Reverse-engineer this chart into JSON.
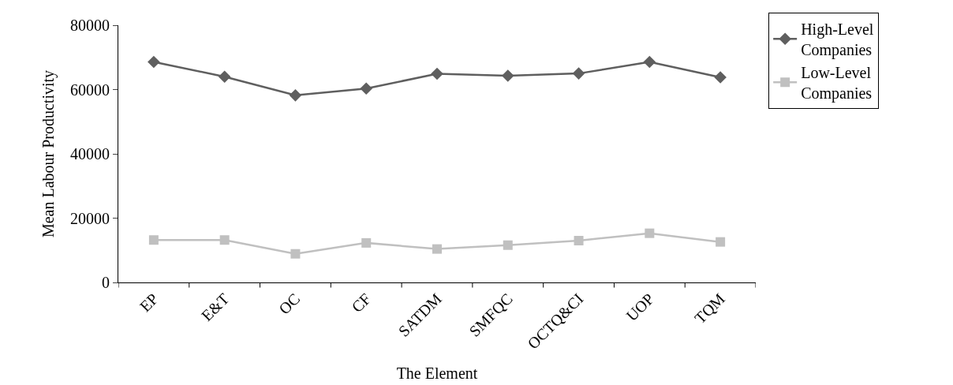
{
  "chart_data": {
    "type": "line",
    "xlabel": "The Element",
    "ylabel": "Mean Labour Productivity",
    "categories": [
      "EP",
      "E&T",
      "OC",
      "CF",
      "SATDM",
      "SMFQC",
      "OCTQ&CI",
      "UOP",
      "TQM"
    ],
    "series": [
      {
        "name": "High-Level Companies",
        "color": "#5f5f5f",
        "marker": "diamond",
        "values": [
          68600,
          64000,
          58200,
          60300,
          64900,
          64300,
          65000,
          68600,
          63800
        ]
      },
      {
        "name": "Low-Level Companies",
        "color": "#c0c0c0",
        "marker": "square",
        "values": [
          13200,
          13200,
          8900,
          12300,
          10400,
          11600,
          13000,
          15300,
          12600
        ]
      }
    ],
    "ylim": [
      0,
      80000
    ],
    "yticks": [
      0,
      20000,
      40000,
      60000,
      80000
    ],
    "grid": false,
    "legend": "top right",
    "line_style": "solid"
  }
}
